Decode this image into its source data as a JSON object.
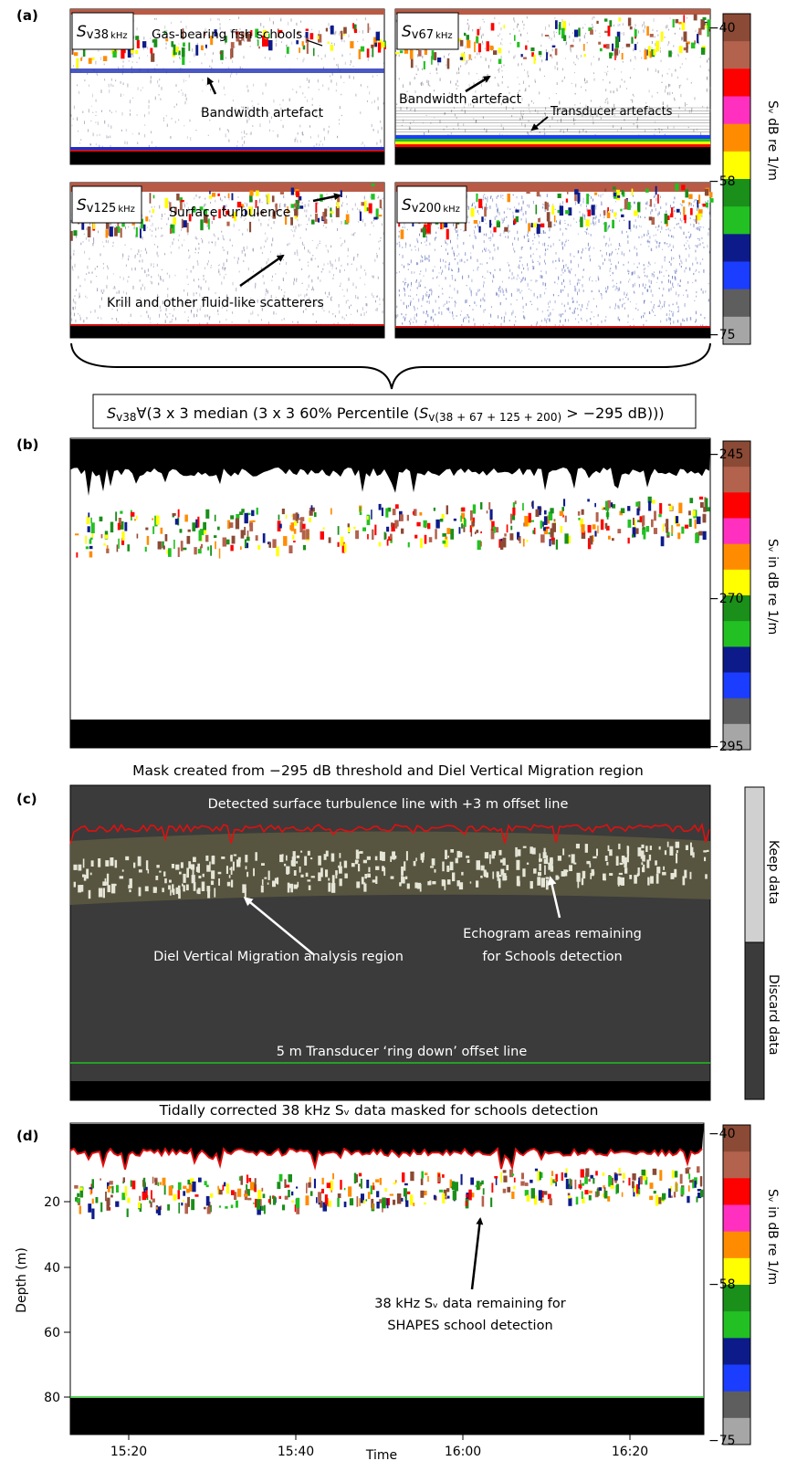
{
  "panel_a": {
    "label": "(a)",
    "subplots": [
      {
        "symbol": "S",
        "sub": "v38",
        "unit": "kHz"
      },
      {
        "symbol": "S",
        "sub": "v67",
        "unit": "kHz"
      },
      {
        "symbol": "S",
        "sub": "v125",
        "unit": "kHz"
      },
      {
        "symbol": "S",
        "sub": "v200",
        "unit": "kHz"
      }
    ],
    "annotations": {
      "gas_bearing": "Gas-bearing fish schools",
      "bandwidth_1": "Bandwidth  artefact",
      "bandwidth_2": "Bandwidth  artefact",
      "transducer": "Transducer artefacts",
      "surface": "Surface turbulence",
      "krill": "Krill and other fluid-like scatterers"
    },
    "colorbar": {
      "ticks": [
        "−40",
        "−58",
        "−75"
      ],
      "label": "Sᵥ dB re 1/m"
    }
  },
  "formula": {
    "part1": "S",
    "sub1": "v38",
    "part2": "∀(3 x 3 median  (3 x 3 60% Percentile (",
    "part3": "S",
    "sub2": "v(38 + 67 + 125 + 200)",
    "part4": " > −295 dB)))"
  },
  "panel_b": {
    "label": "(b)",
    "colorbar": {
      "ticks": [
        "−245",
        "−270",
        "−295"
      ],
      "label": "Sᵥ in dB re 1/m"
    }
  },
  "panel_c": {
    "label": "(c)",
    "title": "Mask created from −295 dB threshold and Diel Vertical Migration region",
    "line_text": "Detected surface turbulence line with +3 m offset line",
    "dvm_text": "Diel Vertical Migration analysis region",
    "echo_text_1": "Echogram areas remaining",
    "echo_text_2": "for Schools detection",
    "ringdown_text": "5 m Transducer ‘ring down’ offset line",
    "keep": "Keep data",
    "discard": "Discard data"
  },
  "panel_d": {
    "label": "(d)",
    "title": "Tidally corrected 38 kHz Sᵥ data masked for schools detection",
    "annot_1": "38 kHz  Sᵥ data remaining for",
    "annot_2": "SHAPES school detection",
    "ylabel": "Depth (m)",
    "xlabel": "Time",
    "yticks": [
      "20",
      "40",
      "60",
      "80"
    ],
    "xticks": [
      "15:20",
      "15:40",
      "16:00",
      "16:20"
    ],
    "colorbar": {
      "ticks": [
        "−40",
        "−58",
        "−75"
      ],
      "label": "Sᵥ in dB re 1/m"
    }
  },
  "colors": {
    "scale": [
      "#8b4a35",
      "#b3624d",
      "#ff0000",
      "#ff30c0",
      "#ff8c00",
      "#ffff00",
      "#1a8f1a",
      "#22c022",
      "#0d1b8a",
      "#1a3dff",
      "#5e5e5e",
      "#a6a6a6"
    ],
    "keep": "#d0d0d0",
    "discard": "#3b3b3b",
    "turbulence_line": "#e01010",
    "ringdown_line": "#20c020"
  }
}
